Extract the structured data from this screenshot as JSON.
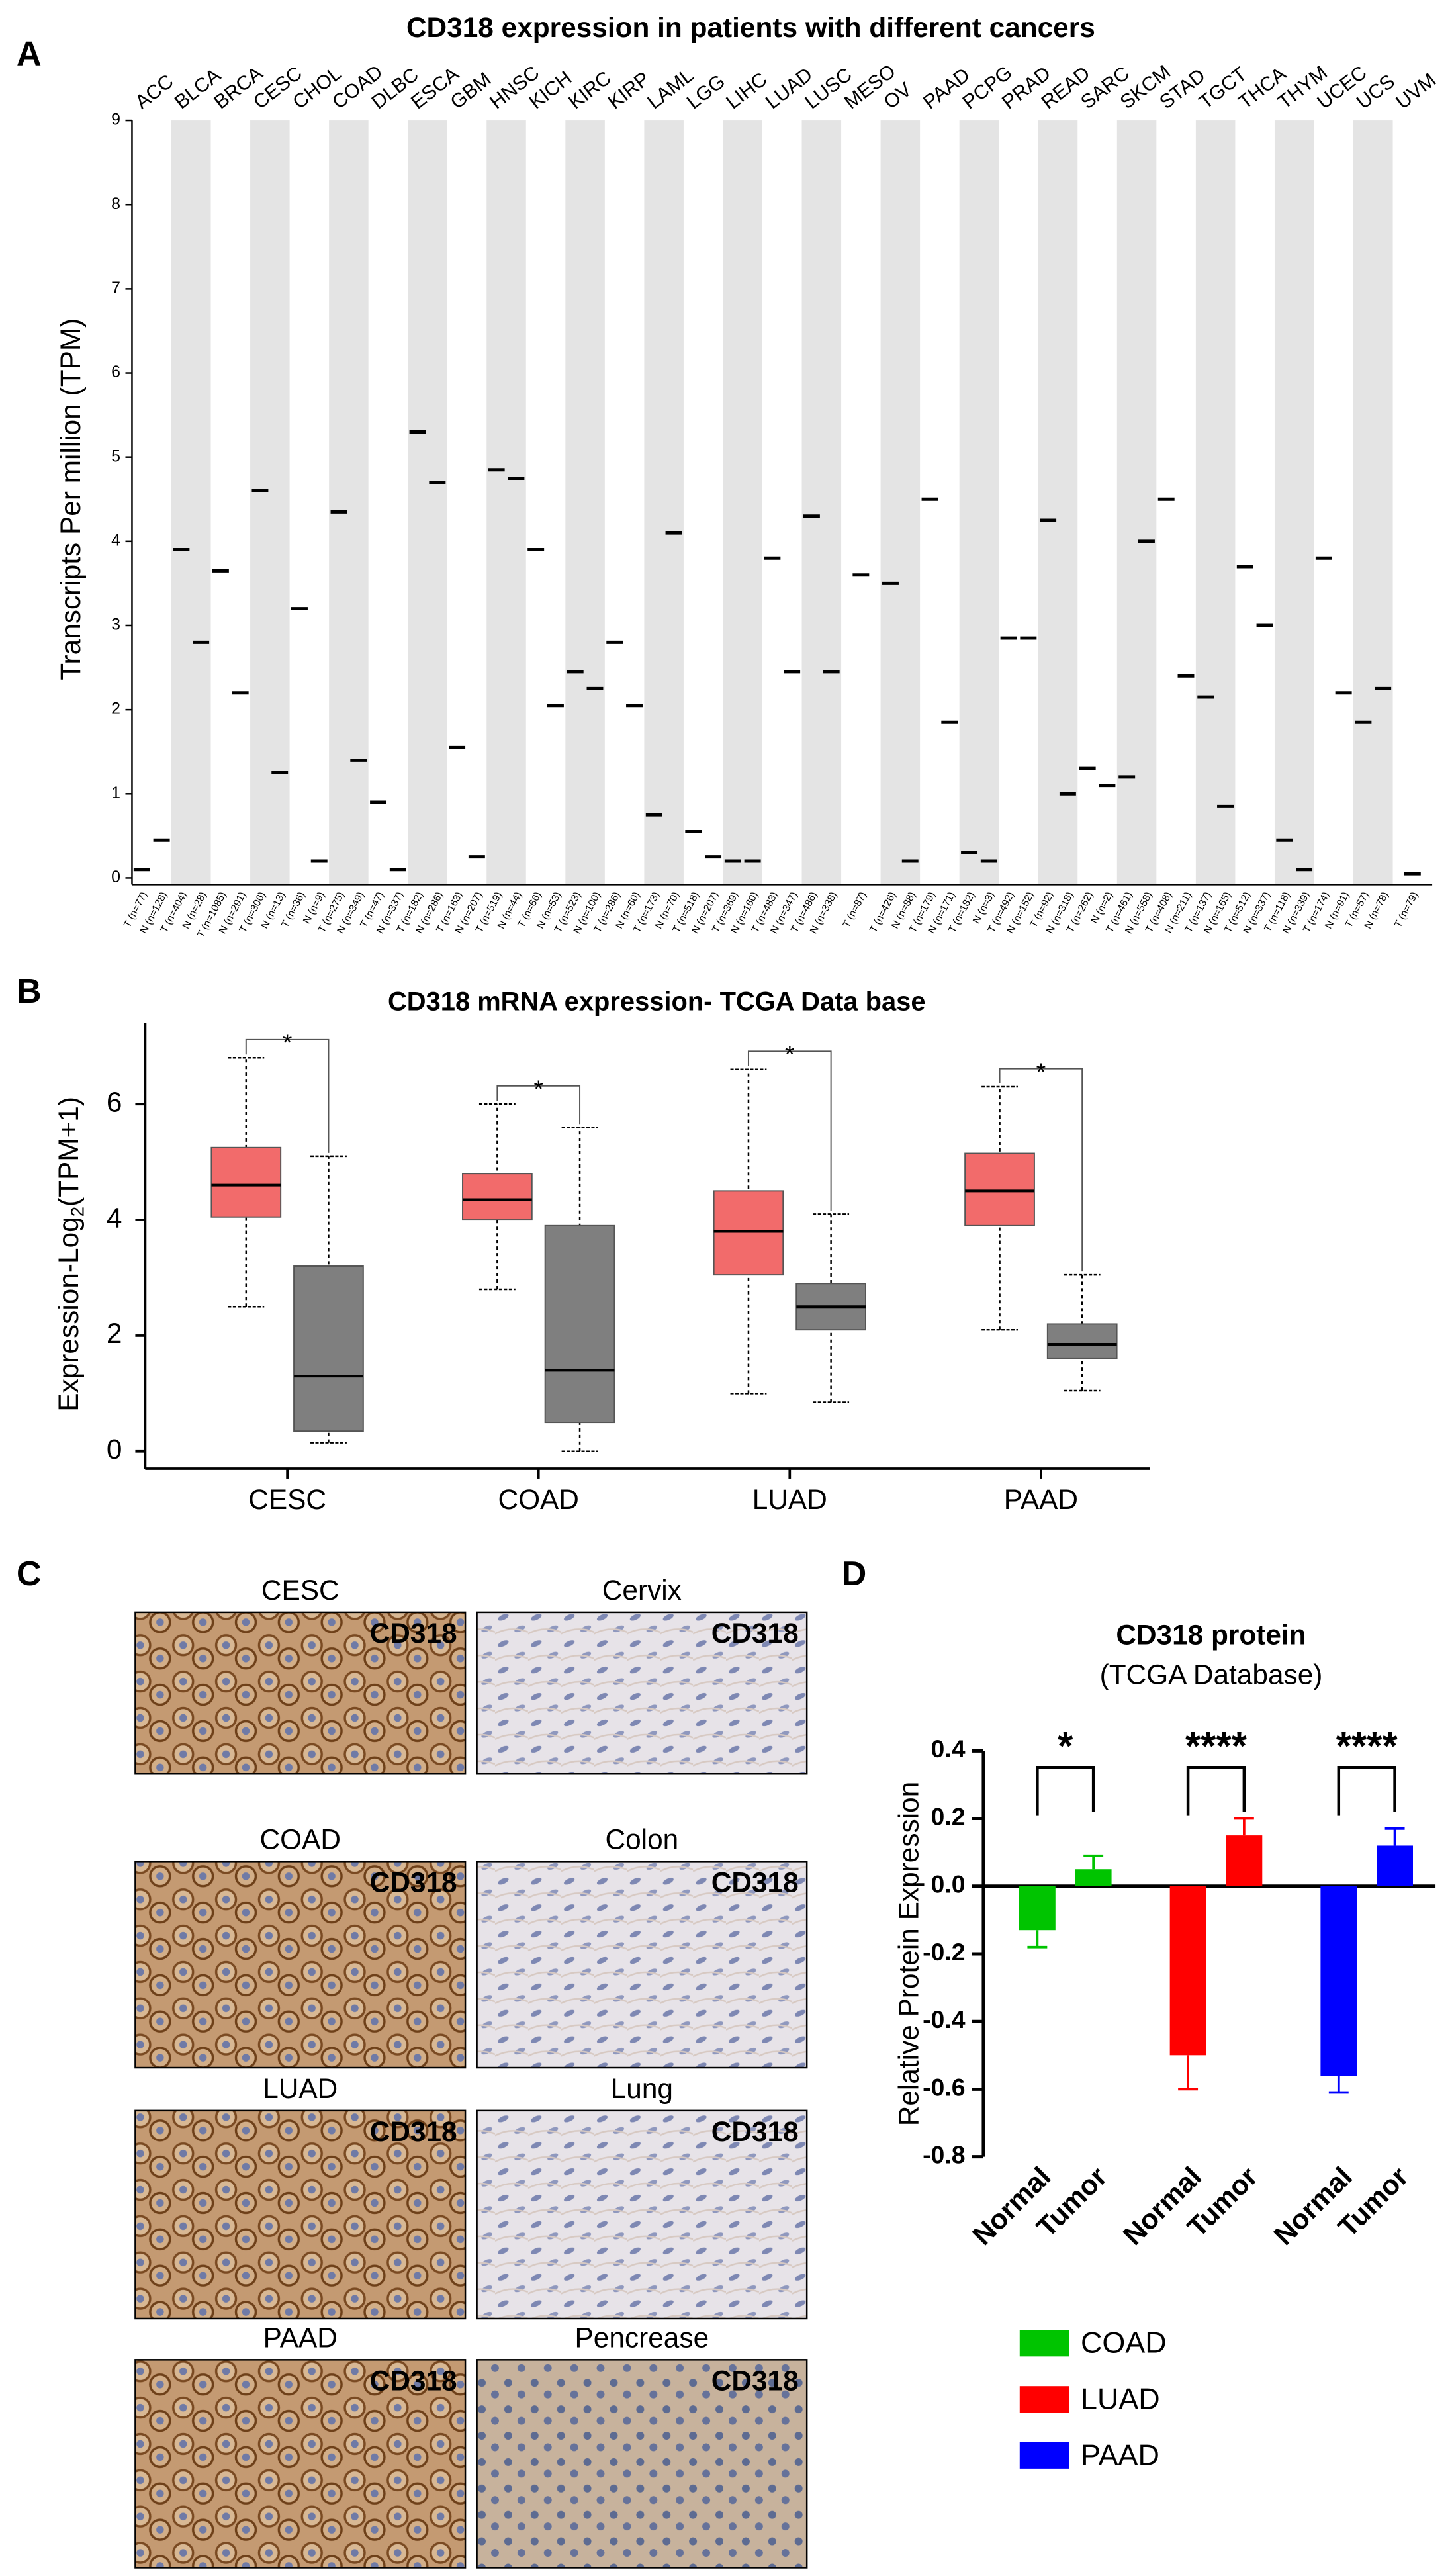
{
  "chart_data": [
    {
      "type": "strip",
      "title": "CD318 expression in patients with different cancers",
      "y_label": "Transcripts Per million (TPM)",
      "ylim": [
        0,
        9
      ],
      "yticks": [
        0,
        1,
        2,
        3,
        4,
        5,
        6,
        7,
        8,
        9
      ],
      "cancers": [
        {
          "name": "ACC",
          "color": "#000000",
          "groups": [
            {
              "label": "T (n=77)",
              "median": 0.1,
              "color": "#e8615f"
            },
            {
              "label": "N (n=128)",
              "median": 0.45,
              "color": "#1fa33a"
            }
          ]
        },
        {
          "name": "BLCA",
          "color": "#e8615f",
          "groups": [
            {
              "label": "T (n=404)",
              "median": 3.9,
              "color": "#e8615f"
            },
            {
              "label": "N (n=28)",
              "median": 2.8,
              "color": "#1fa33a"
            }
          ]
        },
        {
          "name": "BRCA",
          "color": "#e8615f",
          "groups": [
            {
              "label": "T (n=1085)",
              "median": 3.65,
              "color": "#e8615f"
            },
            {
              "label": "N (n=291)",
              "median": 2.2,
              "color": "#1fa33a"
            }
          ]
        },
        {
          "name": "CESC",
          "color": "#e8615f",
          "groups": [
            {
              "label": "T (n=306)",
              "median": 4.6,
              "color": "#e8615f"
            },
            {
              "label": "N (n=13)",
              "median": 1.25,
              "color": "#1fa33a"
            }
          ]
        },
        {
          "name": "CHOL",
          "color": "#000000",
          "groups": [
            {
              "label": "T (n=36)",
              "median": 3.2,
              "color": "#e8615f"
            },
            {
              "label": "N (n=9)",
              "median": 0.2,
              "color": "#1fa33a"
            }
          ]
        },
        {
          "name": "COAD",
          "color": "#e8615f",
          "groups": [
            {
              "label": "T (n=275)",
              "median": 4.35,
              "color": "#e8615f"
            },
            {
              "label": "N (n=349)",
              "median": 1.4,
              "color": "#1fa33a"
            }
          ]
        },
        {
          "name": "DLBC",
          "color": "#000000",
          "groups": [
            {
              "label": "T (n=47)",
              "median": 0.9,
              "color": "#e8615f"
            },
            {
              "label": "N (n=337)",
              "median": 0.1,
              "color": "#1fa33a"
            }
          ]
        },
        {
          "name": "ESCA",
          "color": "#000000",
          "groups": [
            {
              "label": "T (n=182)",
              "median": 5.3,
              "color": "#e8615f"
            },
            {
              "label": "N (n=286)",
              "median": 4.7,
              "color": "#1fa33a"
            }
          ]
        },
        {
          "name": "GBM",
          "color": "#e8615f",
          "groups": [
            {
              "label": "T (n=163)",
              "median": 1.55,
              "color": "#e8615f"
            },
            {
              "label": "N (n=207)",
              "median": 0.25,
              "color": "#1fa33a"
            }
          ]
        },
        {
          "name": "HNSC",
          "color": "#000000",
          "groups": [
            {
              "label": "T (n=519)",
              "median": 4.85,
              "color": "#e8615f"
            },
            {
              "label": "N (n=44)",
              "median": 4.75,
              "color": "#1fa33a"
            }
          ]
        },
        {
          "name": "KICH",
          "color": "#e8615f",
          "groups": [
            {
              "label": "T (n=66)",
              "median": 3.9,
              "color": "#e8615f"
            },
            {
              "label": "N (n=53)",
              "median": 2.05,
              "color": "#1fa33a"
            }
          ]
        },
        {
          "name": "KIRC",
          "color": "#000000",
          "groups": [
            {
              "label": "T (n=523)",
              "median": 2.45,
              "color": "#e8615f"
            },
            {
              "label": "N (n=100)",
              "median": 2.25,
              "color": "#1fa33a"
            }
          ]
        },
        {
          "name": "KIRP",
          "color": "#000000",
          "groups": [
            {
              "label": "T (n=286)",
              "median": 2.8,
              "color": "#e8615f"
            },
            {
              "label": "N (n=60)",
              "median": 2.05,
              "color": "#1fa33a"
            }
          ]
        },
        {
          "name": "LAML",
          "color": "#1fa33a",
          "groups": [
            {
              "label": "T (n=173)",
              "median": 0.75,
              "color": "#e8615f"
            },
            {
              "label": "N (n=70)",
              "median": 4.1,
              "color": "#1fa33a"
            }
          ]
        },
        {
          "name": "LGG",
          "color": "#000000",
          "groups": [
            {
              "label": "T (n=518)",
              "median": 0.55,
              "color": "#e8615f"
            },
            {
              "label": "N (n=207)",
              "median": 0.25,
              "color": "#1fa33a"
            }
          ]
        },
        {
          "name": "LIHC",
          "color": "#000000",
          "groups": [
            {
              "label": "T (n=369)",
              "median": 0.2,
              "color": "#e8615f"
            },
            {
              "label": "N (n=160)",
              "median": 0.2,
              "color": "#1fa33a"
            }
          ]
        },
        {
          "name": "LUAD",
          "color": "#e8615f",
          "groups": [
            {
              "label": "T (n=483)",
              "median": 3.8,
              "color": "#e8615f"
            },
            {
              "label": "N (n=347)",
              "median": 2.45,
              "color": "#1fa33a"
            }
          ]
        },
        {
          "name": "LUSC",
          "color": "#e8615f",
          "groups": [
            {
              "label": "T (n=486)",
              "median": 4.3,
              "color": "#e8615f"
            },
            {
              "label": "N (n=338)",
              "median": 2.45,
              "color": "#1fa33a"
            }
          ]
        },
        {
          "name": "MESO",
          "color": "#000000",
          "groups": [
            {
              "label": "T (n=87)",
              "median": 3.6,
              "color": "#e8615f"
            }
          ]
        },
        {
          "name": "OV",
          "color": "#e8615f",
          "groups": [
            {
              "label": "T (n=426)",
              "median": 3.5,
              "color": "#e8615f"
            },
            {
              "label": "N (n=88)",
              "median": 0.2,
              "color": "#1fa33a"
            }
          ]
        },
        {
          "name": "PAAD",
          "color": "#e8615f",
          "groups": [
            {
              "label": "T (n=179)",
              "median": 4.5,
              "color": "#e8615f"
            },
            {
              "label": "N (n=171)",
              "median": 1.85,
              "color": "#1fa33a"
            }
          ]
        },
        {
          "name": "PCPG",
          "color": "#000000",
          "groups": [
            {
              "label": "T (n=182)",
              "median": 0.3,
              "color": "#e8615f"
            },
            {
              "label": "N (n=3)",
              "median": 0.2,
              "color": "#1fa33a"
            }
          ]
        },
        {
          "name": "PRAD",
          "color": "#000000",
          "groups": [
            {
              "label": "T (n=492)",
              "median": 2.85,
              "color": "#e8615f"
            },
            {
              "label": "N (n=152)",
              "median": 2.85,
              "color": "#1fa33a"
            }
          ]
        },
        {
          "name": "READ",
          "color": "#e8615f",
          "groups": [
            {
              "label": "T (n=92)",
              "median": 4.25,
              "color": "#e8615f"
            },
            {
              "label": "N (n=318)",
              "median": 1.0,
              "color": "#1fa33a"
            }
          ]
        },
        {
          "name": "SARC",
          "color": "#000000",
          "groups": [
            {
              "label": "T (n=262)",
              "median": 1.3,
              "color": "#e8615f"
            },
            {
              "label": "N (n=2)",
              "median": 1.1,
              "color": "#1fa33a"
            }
          ]
        },
        {
          "name": "SKCM",
          "color": "#1fa33a",
          "groups": [
            {
              "label": "T (n=461)",
              "median": 1.2,
              "color": "#e8615f"
            },
            {
              "label": "N (n=558)",
              "median": 4.0,
              "color": "#1fa33a"
            }
          ]
        },
        {
          "name": "STAD",
          "color": "#e8615f",
          "groups": [
            {
              "label": "T (n=408)",
              "median": 4.5,
              "color": "#e8615f"
            },
            {
              "label": "N (n=211)",
              "median": 2.4,
              "color": "#1fa33a"
            }
          ]
        },
        {
          "name": "TGCT",
          "color": "#e8615f",
          "groups": [
            {
              "label": "T (n=137)",
              "median": 2.15,
              "color": "#e8615f"
            },
            {
              "label": "N (n=165)",
              "median": 0.85,
              "color": "#1fa33a"
            }
          ]
        },
        {
          "name": "THCA",
          "color": "#000000",
          "groups": [
            {
              "label": "T (n=512)",
              "median": 3.7,
              "color": "#e8615f"
            },
            {
              "label": "N (n=337)",
              "median": 3.0,
              "color": "#1fa33a"
            }
          ]
        },
        {
          "name": "THYM",
          "color": "#000000",
          "groups": [
            {
              "label": "T (n=118)",
              "median": 0.45,
              "color": "#e8615f"
            },
            {
              "label": "N (n=339)",
              "median": 0.1,
              "color": "#1fa33a"
            }
          ]
        },
        {
          "name": "UCEC",
          "color": "#e8615f",
          "groups": [
            {
              "label": "T (n=174)",
              "median": 3.8,
              "color": "#e8615f"
            },
            {
              "label": "N (n=91)",
              "median": 2.2,
              "color": "#1fa33a"
            }
          ]
        },
        {
          "name": "UCS",
          "color": "#000000",
          "groups": [
            {
              "label": "T (n=57)",
              "median": 1.85,
              "color": "#e8615f"
            },
            {
              "label": "N (n=78)",
              "median": 2.25,
              "color": "#1fa33a"
            }
          ]
        },
        {
          "name": "UVM",
          "color": "#000000",
          "groups": [
            {
              "label": "T (n=79)",
              "median": 0.05,
              "color": "#e8615f"
            }
          ]
        }
      ]
    },
    {
      "type": "box",
      "title": "CD318 mRNA expression- TCGA Data base",
      "y_label": [
        "Expression-Log",
        "2",
        "(TPM+1)"
      ],
      "ylim": [
        -0.3,
        7.4
      ],
      "yticks": [
        0,
        2,
        4,
        6
      ],
      "categories": [
        "CESC",
        "COAD",
        "LUAD",
        "PAAD"
      ],
      "colors": [
        "#f26b6b",
        "#7f7f7f"
      ],
      "boxes": [
        [
          {
            "low": 2.5,
            "q1": 4.05,
            "median": 4.6,
            "q3": 5.25,
            "high": 6.8
          },
          {
            "low": 0.15,
            "q1": 0.35,
            "median": 1.3,
            "q3": 3.2,
            "high": 5.1
          }
        ],
        [
          {
            "low": 2.8,
            "q1": 4.0,
            "median": 4.35,
            "q3": 4.8,
            "high": 6.0
          },
          {
            "low": 0.0,
            "q1": 0.5,
            "median": 1.4,
            "q3": 3.9,
            "high": 5.6
          }
        ],
        [
          {
            "low": 1.0,
            "q1": 3.05,
            "median": 3.8,
            "q3": 4.5,
            "high": 6.6
          },
          {
            "low": 0.85,
            "q1": 2.1,
            "median": 2.5,
            "q3": 2.9,
            "high": 4.1
          }
        ],
        [
          {
            "low": 2.1,
            "q1": 3.9,
            "median": 4.5,
            "q3": 5.15,
            "high": 6.3
          },
          {
            "low": 1.05,
            "q1": 1.6,
            "median": 1.85,
            "q3": 2.2,
            "high": 3.05
          }
        ]
      ],
      "significance": [
        "*",
        "*",
        "*",
        "*"
      ]
    },
    {
      "type": "bar",
      "title": "CD318 protein",
      "subtitle": "(TCGA Database)",
      "y_label": "Relative Protein Expression",
      "ylim": [
        -0.8,
        0.4
      ],
      "yticks": [
        -0.8,
        -0.6,
        -0.4,
        -0.2,
        {
          "value": 0,
          "label": "0.0"
        },
        0.2,
        0.4
      ],
      "categories": [
        "Normal",
        "Tumor"
      ],
      "series": [
        {
          "name": "COAD",
          "color": "#00c400",
          "values": [
            -0.13,
            0.05
          ],
          "errors": [
            0.05,
            0.04
          ]
        },
        {
          "name": "LUAD",
          "color": "#ff0000",
          "values": [
            -0.5,
            0.15
          ],
          "errors": [
            0.1,
            0.05
          ]
        },
        {
          "name": "PAAD",
          "color": "#0000ff",
          "values": [
            -0.56,
            0.12
          ],
          "errors": [
            0.05,
            0.05
          ]
        }
      ],
      "significance": [
        "*",
        "****",
        "****"
      ]
    }
  ],
  "figure": {
    "panel_labels": [
      "A",
      "B",
      "C",
      "D"
    ],
    "images": [
      {
        "title": "CESC",
        "marker": "CD318"
      },
      {
        "title": "Cervix",
        "marker": "CD318"
      },
      {
        "title": "COAD",
        "marker": "CD318"
      },
      {
        "title": "Colon",
        "marker": "CD318"
      },
      {
        "title": "LUAD",
        "marker": "CD318"
      },
      {
        "title": "Lung",
        "marker": "CD318"
      },
      {
        "title": "PAAD",
        "marker": "CD318"
      },
      {
        "title": "Pencrease",
        "marker": "CD318"
      }
    ]
  }
}
